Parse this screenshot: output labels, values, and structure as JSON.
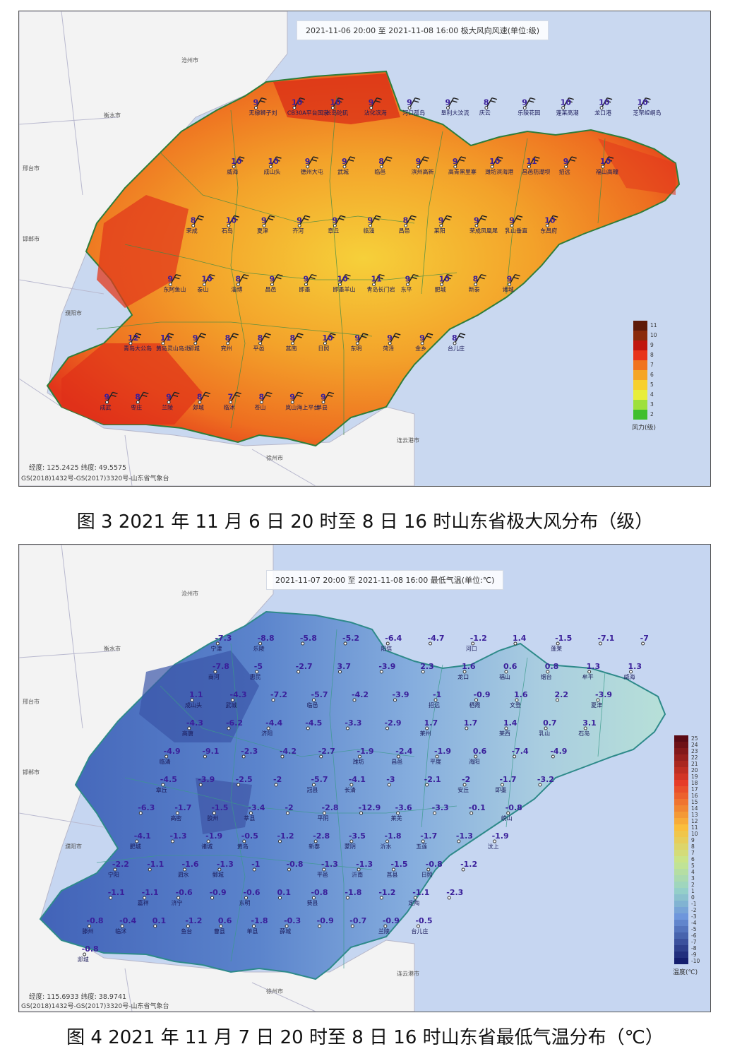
{
  "map1": {
    "header": "2021-11-06 20:00 至 2021-11-08 16:00 极大风向风速(单位:级)",
    "coords": "经度: 125.2425  纬度: 49.5575",
    "credit": "GS(2018)1432号-GS(2017)3320号-山东省气象台",
    "legend_title": "风力(级)",
    "legend_levels": [
      "11",
      "10",
      "9",
      "8",
      "7",
      "6",
      "5",
      "4",
      "3",
      "2"
    ],
    "legend_colors": [
      "#5e1a08",
      "#8a2a0a",
      "#c0150e",
      "#e8321a",
      "#f0731d",
      "#f5a524",
      "#f7d02e",
      "#e8ee3a",
      "#9ee03c",
      "#3fbf2e"
    ],
    "cities": [
      "沧州市",
      "衡水市",
      "邢台市",
      "邯郸市",
      "濮阳市",
      "徐州市",
      "连云港市"
    ],
    "stations": [
      {
        "v": "9",
        "n": "无棣狮子刘"
      },
      {
        "v": "10",
        "n": "CB30A平台国家"
      },
      {
        "v": "10",
        "n": "长岛砣矶"
      },
      {
        "v": "9",
        "n": "沾化滨海"
      },
      {
        "v": "9",
        "n": "河口孤岛"
      },
      {
        "v": "9",
        "n": "垦利大汶流"
      },
      {
        "v": "8",
        "n": "庆云"
      },
      {
        "v": "9",
        "n": "乐陵花园"
      },
      {
        "v": "10",
        "n": "蓬莱高潮"
      },
      {
        "v": "10",
        "n": "龙口港"
      },
      {
        "v": "10",
        "n": "芝罘崆峒岛"
      },
      {
        "v": "10",
        "n": "威海"
      },
      {
        "v": "10",
        "n": "成山头"
      },
      {
        "v": "9",
        "n": "德州大屯"
      },
      {
        "v": "9",
        "n": "武城"
      },
      {
        "v": "8",
        "n": "临邑"
      },
      {
        "v": "9",
        "n": "滨州高新"
      },
      {
        "v": "9",
        "n": "高青黑里寨"
      },
      {
        "v": "10",
        "n": "潍坊滨海港"
      },
      {
        "v": "11",
        "n": "昌邑防潮坝"
      },
      {
        "v": "9",
        "n": "招远"
      },
      {
        "v": "10",
        "n": "福山高疃"
      },
      {
        "v": "8",
        "n": "荣成"
      },
      {
        "v": "10",
        "n": "石岛"
      },
      {
        "v": "9",
        "n": "夏津"
      },
      {
        "v": "9",
        "n": "齐河"
      },
      {
        "v": "9",
        "n": "章丘"
      },
      {
        "v": "9",
        "n": "临淄"
      },
      {
        "v": "8",
        "n": "昌邑"
      },
      {
        "v": "9",
        "n": "莱阳"
      },
      {
        "v": "9",
        "n": "荣成凤凰尾"
      },
      {
        "v": "9",
        "n": "乳山垂直"
      },
      {
        "v": "10",
        "n": "东昌府"
      },
      {
        "v": "9",
        "n": "东阿鱼山"
      },
      {
        "v": "10",
        "n": "泰山"
      },
      {
        "v": "8",
        "n": "淄博"
      },
      {
        "v": "9",
        "n": "昌邑"
      },
      {
        "v": "9",
        "n": "即墨"
      },
      {
        "v": "10",
        "n": "即墨羊山"
      },
      {
        "v": "11",
        "n": "青岛长门岩"
      },
      {
        "v": "9",
        "n": "东平"
      },
      {
        "v": "10",
        "n": "肥城"
      },
      {
        "v": "8",
        "n": "新泰"
      },
      {
        "v": "9",
        "n": "诸城"
      },
      {
        "v": "12",
        "n": "青岛大公岛"
      },
      {
        "v": "11",
        "n": "黄岛灵山岛北"
      },
      {
        "v": "9",
        "n": "郓城"
      },
      {
        "v": "8",
        "n": "兖州"
      },
      {
        "v": "8",
        "n": "平邑"
      },
      {
        "v": "8",
        "n": "莒南"
      },
      {
        "v": "10",
        "n": "日照"
      },
      {
        "v": "9",
        "n": "东明"
      },
      {
        "v": "9",
        "n": "菏泽"
      },
      {
        "v": "9",
        "n": "金乡"
      },
      {
        "v": "8",
        "n": "台儿庄"
      },
      {
        "v": "9",
        "n": "成武"
      },
      {
        "v": "8",
        "n": "枣庄"
      },
      {
        "v": "9",
        "n": "兰陵"
      },
      {
        "v": "8",
        "n": "郯城"
      },
      {
        "v": "7",
        "n": "临沭"
      },
      {
        "v": "8",
        "n": "苍山"
      },
      {
        "v": "9",
        "n": "岚山海上平台"
      },
      {
        "v": "9",
        "n": "单县"
      }
    ]
  },
  "map2": {
    "header": "2021-11-07 20:00 至 2021-11-08 16:00 最低气温(单位:℃)",
    "coords": "经度: 115.6933  纬度: 38.9741",
    "credit": "GS(2018)1432号-GS(2017)3320号-山东省气象台",
    "legend_title": "温度(℃)",
    "legend_levels": [
      "25",
      "24",
      "23",
      "22",
      "21",
      "20",
      "19",
      "18",
      "17",
      "16",
      "15",
      "14",
      "13",
      "12",
      "11",
      "10",
      "9",
      "8",
      "7",
      "6",
      "5",
      "4",
      "3",
      "2",
      "1",
      "0",
      "-1",
      "-2",
      "-3",
      "-4",
      "-5",
      "-6",
      "-7",
      "-8",
      "-9",
      "-10"
    ],
    "cities": [
      "沧州市",
      "衡水市",
      "邢台市",
      "邯郸市",
      "濮阳市",
      "徐州市",
      "连云港市"
    ],
    "stations": [
      {
        "v": "-7.3",
        "n": "宁津"
      },
      {
        "v": "-8.8",
        "n": "乐陵"
      },
      {
        "v": "-5.8",
        "n": ""
      },
      {
        "v": "-5.2",
        "n": ""
      },
      {
        "v": "-6.4",
        "n": "阳信"
      },
      {
        "v": "-4.7",
        "n": ""
      },
      {
        "v": "-1.2",
        "n": "河口"
      },
      {
        "v": "1.4",
        "n": ""
      },
      {
        "v": "-1.5",
        "n": "蓬莱"
      },
      {
        "v": "-7.1",
        "n": ""
      },
      {
        "v": "-7",
        "n": ""
      },
      {
        "v": "-7.8",
        "n": "商河"
      },
      {
        "v": "-5",
        "n": "惠民"
      },
      {
        "v": "-2.7",
        "n": ""
      },
      {
        "v": "3.7",
        "n": ""
      },
      {
        "v": "-3.9",
        "n": ""
      },
      {
        "v": "2.3",
        "n": ""
      },
      {
        "v": "1.6",
        "n": "龙口"
      },
      {
        "v": "0.6",
        "n": "福山"
      },
      {
        "v": "0.8",
        "n": "烟台"
      },
      {
        "v": "1.3",
        "n": "牟平"
      },
      {
        "v": "1.3",
        "n": "威海"
      },
      {
        "v": "1.1",
        "n": "成山头"
      },
      {
        "v": "-4.3",
        "n": "武城"
      },
      {
        "v": "-7.2",
        "n": ""
      },
      {
        "v": "-5.7",
        "n": "临邑"
      },
      {
        "v": "-4.2",
        "n": ""
      },
      {
        "v": "-3.9",
        "n": ""
      },
      {
        "v": "-1",
        "n": "招远"
      },
      {
        "v": "-0.9",
        "n": "栖霞"
      },
      {
        "v": "1.6",
        "n": "文登"
      },
      {
        "v": "2.2",
        "n": ""
      },
      {
        "v": "-3.9",
        "n": "夏津"
      },
      {
        "v": "-4.3",
        "n": "高唐"
      },
      {
        "v": "-6.2",
        "n": ""
      },
      {
        "v": "-4.4",
        "n": "济阳"
      },
      {
        "v": "-4.5",
        "n": ""
      },
      {
        "v": "-3.3",
        "n": ""
      },
      {
        "v": "-2.9",
        "n": ""
      },
      {
        "v": "1.7",
        "n": "莱州"
      },
      {
        "v": "1.7",
        "n": ""
      },
      {
        "v": "1.4",
        "n": "莱西"
      },
      {
        "v": "0.7",
        "n": "乳山"
      },
      {
        "v": "3.1",
        "n": "石岛"
      },
      {
        "v": "-4.9",
        "n": "临清"
      },
      {
        "v": "-9.1",
        "n": ""
      },
      {
        "v": "-2.3",
        "n": ""
      },
      {
        "v": "-4.2",
        "n": ""
      },
      {
        "v": "-2.7",
        "n": ""
      },
      {
        "v": "-1.9",
        "n": "潍坊"
      },
      {
        "v": "-2.4",
        "n": "昌邑"
      },
      {
        "v": "-1.9",
        "n": "平度"
      },
      {
        "v": "0.6",
        "n": "海阳"
      },
      {
        "v": "-7.4",
        "n": ""
      },
      {
        "v": "-4.9",
        "n": ""
      },
      {
        "v": "-4.5",
        "n": "章丘"
      },
      {
        "v": "-3.9",
        "n": ""
      },
      {
        "v": "-2.5",
        "n": ""
      },
      {
        "v": "-2",
        "n": ""
      },
      {
        "v": "-5.7",
        "n": "冠县"
      },
      {
        "v": "-4.1",
        "n": "长清"
      },
      {
        "v": "-3",
        "n": ""
      },
      {
        "v": "-2.1",
        "n": ""
      },
      {
        "v": "-2",
        "n": "安丘"
      },
      {
        "v": "-1.7",
        "n": "即墨"
      },
      {
        "v": "-3.2",
        "n": ""
      },
      {
        "v": "-6.3",
        "n": ""
      },
      {
        "v": "-1.7",
        "n": "高密"
      },
      {
        "v": "-1.5",
        "n": "胶州"
      },
      {
        "v": "-3.4",
        "n": "莘县"
      },
      {
        "v": "-2",
        "n": ""
      },
      {
        "v": "-2.8",
        "n": "平阴"
      },
      {
        "v": "-12.9",
        "n": ""
      },
      {
        "v": "-3.6",
        "n": "莱芜"
      },
      {
        "v": "-3.3",
        "n": ""
      },
      {
        "v": "-0.1",
        "n": ""
      },
      {
        "v": "-0.8",
        "n": "崂山"
      },
      {
        "v": "-4.1",
        "n": "肥城"
      },
      {
        "v": "-1.3",
        "n": ""
      },
      {
        "v": "-1.9",
        "n": "诸城"
      },
      {
        "v": "-0.5",
        "n": "黄岛"
      },
      {
        "v": "-1.2",
        "n": ""
      },
      {
        "v": "-2.8",
        "n": "新泰"
      },
      {
        "v": "-3.5",
        "n": "蒙阴"
      },
      {
        "v": "-1.8",
        "n": "沂水"
      },
      {
        "v": "-1.7",
        "n": "五莲"
      },
      {
        "v": "-1.3",
        "n": ""
      },
      {
        "v": "-1.9",
        "n": "汶上"
      },
      {
        "v": "-2.2",
        "n": "宁阳"
      },
      {
        "v": "-1.1",
        "n": ""
      },
      {
        "v": "-1.6",
        "n": "泗水"
      },
      {
        "v": "-1.3",
        "n": "鄄城"
      },
      {
        "v": "-1",
        "n": ""
      },
      {
        "v": "-0.8",
        "n": ""
      },
      {
        "v": "-1.3",
        "n": "平邑"
      },
      {
        "v": "-1.3",
        "n": "沂南"
      },
      {
        "v": "-1.5",
        "n": "莒县"
      },
      {
        "v": "-0.8",
        "n": "日照"
      },
      {
        "v": "-1.2",
        "n": ""
      },
      {
        "v": "-1.1",
        "n": ""
      },
      {
        "v": "-1.1",
        "n": "嘉祥"
      },
      {
        "v": "-0.6",
        "n": "济宁"
      },
      {
        "v": "-0.9",
        "n": ""
      },
      {
        "v": "-0.6",
        "n": "东明"
      },
      {
        "v": "0.1",
        "n": ""
      },
      {
        "v": "-0.8",
        "n": "费县"
      },
      {
        "v": "-1.8",
        "n": ""
      },
      {
        "v": "-1.2",
        "n": ""
      },
      {
        "v": "-1.1",
        "n": "定陶"
      },
      {
        "v": "-2.3",
        "n": ""
      },
      {
        "v": "-0.8",
        "n": "滕州"
      },
      {
        "v": "-0.4",
        "n": "临沭"
      },
      {
        "v": "0.1",
        "n": ""
      },
      {
        "v": "-1.2",
        "n": "鱼台"
      },
      {
        "v": "0.6",
        "n": "曹县"
      },
      {
        "v": "-1.8",
        "n": "单县"
      },
      {
        "v": "-0.3",
        "n": "薛城"
      },
      {
        "v": "-0.9",
        "n": ""
      },
      {
        "v": "-0.7",
        "n": ""
      },
      {
        "v": "-0.9",
        "n": "兰陵"
      },
      {
        "v": "-0.5",
        "n": "台儿庄"
      },
      {
        "v": "-0.8",
        "n": "郯城"
      }
    ]
  },
  "captions": {
    "fig3": "图 3 2021 年 11 月 6 日 20 时至 8 日 16 时山东省极大风分布（级）",
    "fig4": "图 4 2021 年 11 月 7 日 20 时至 8 日 16 时山东省最低气温分布（℃）"
  }
}
